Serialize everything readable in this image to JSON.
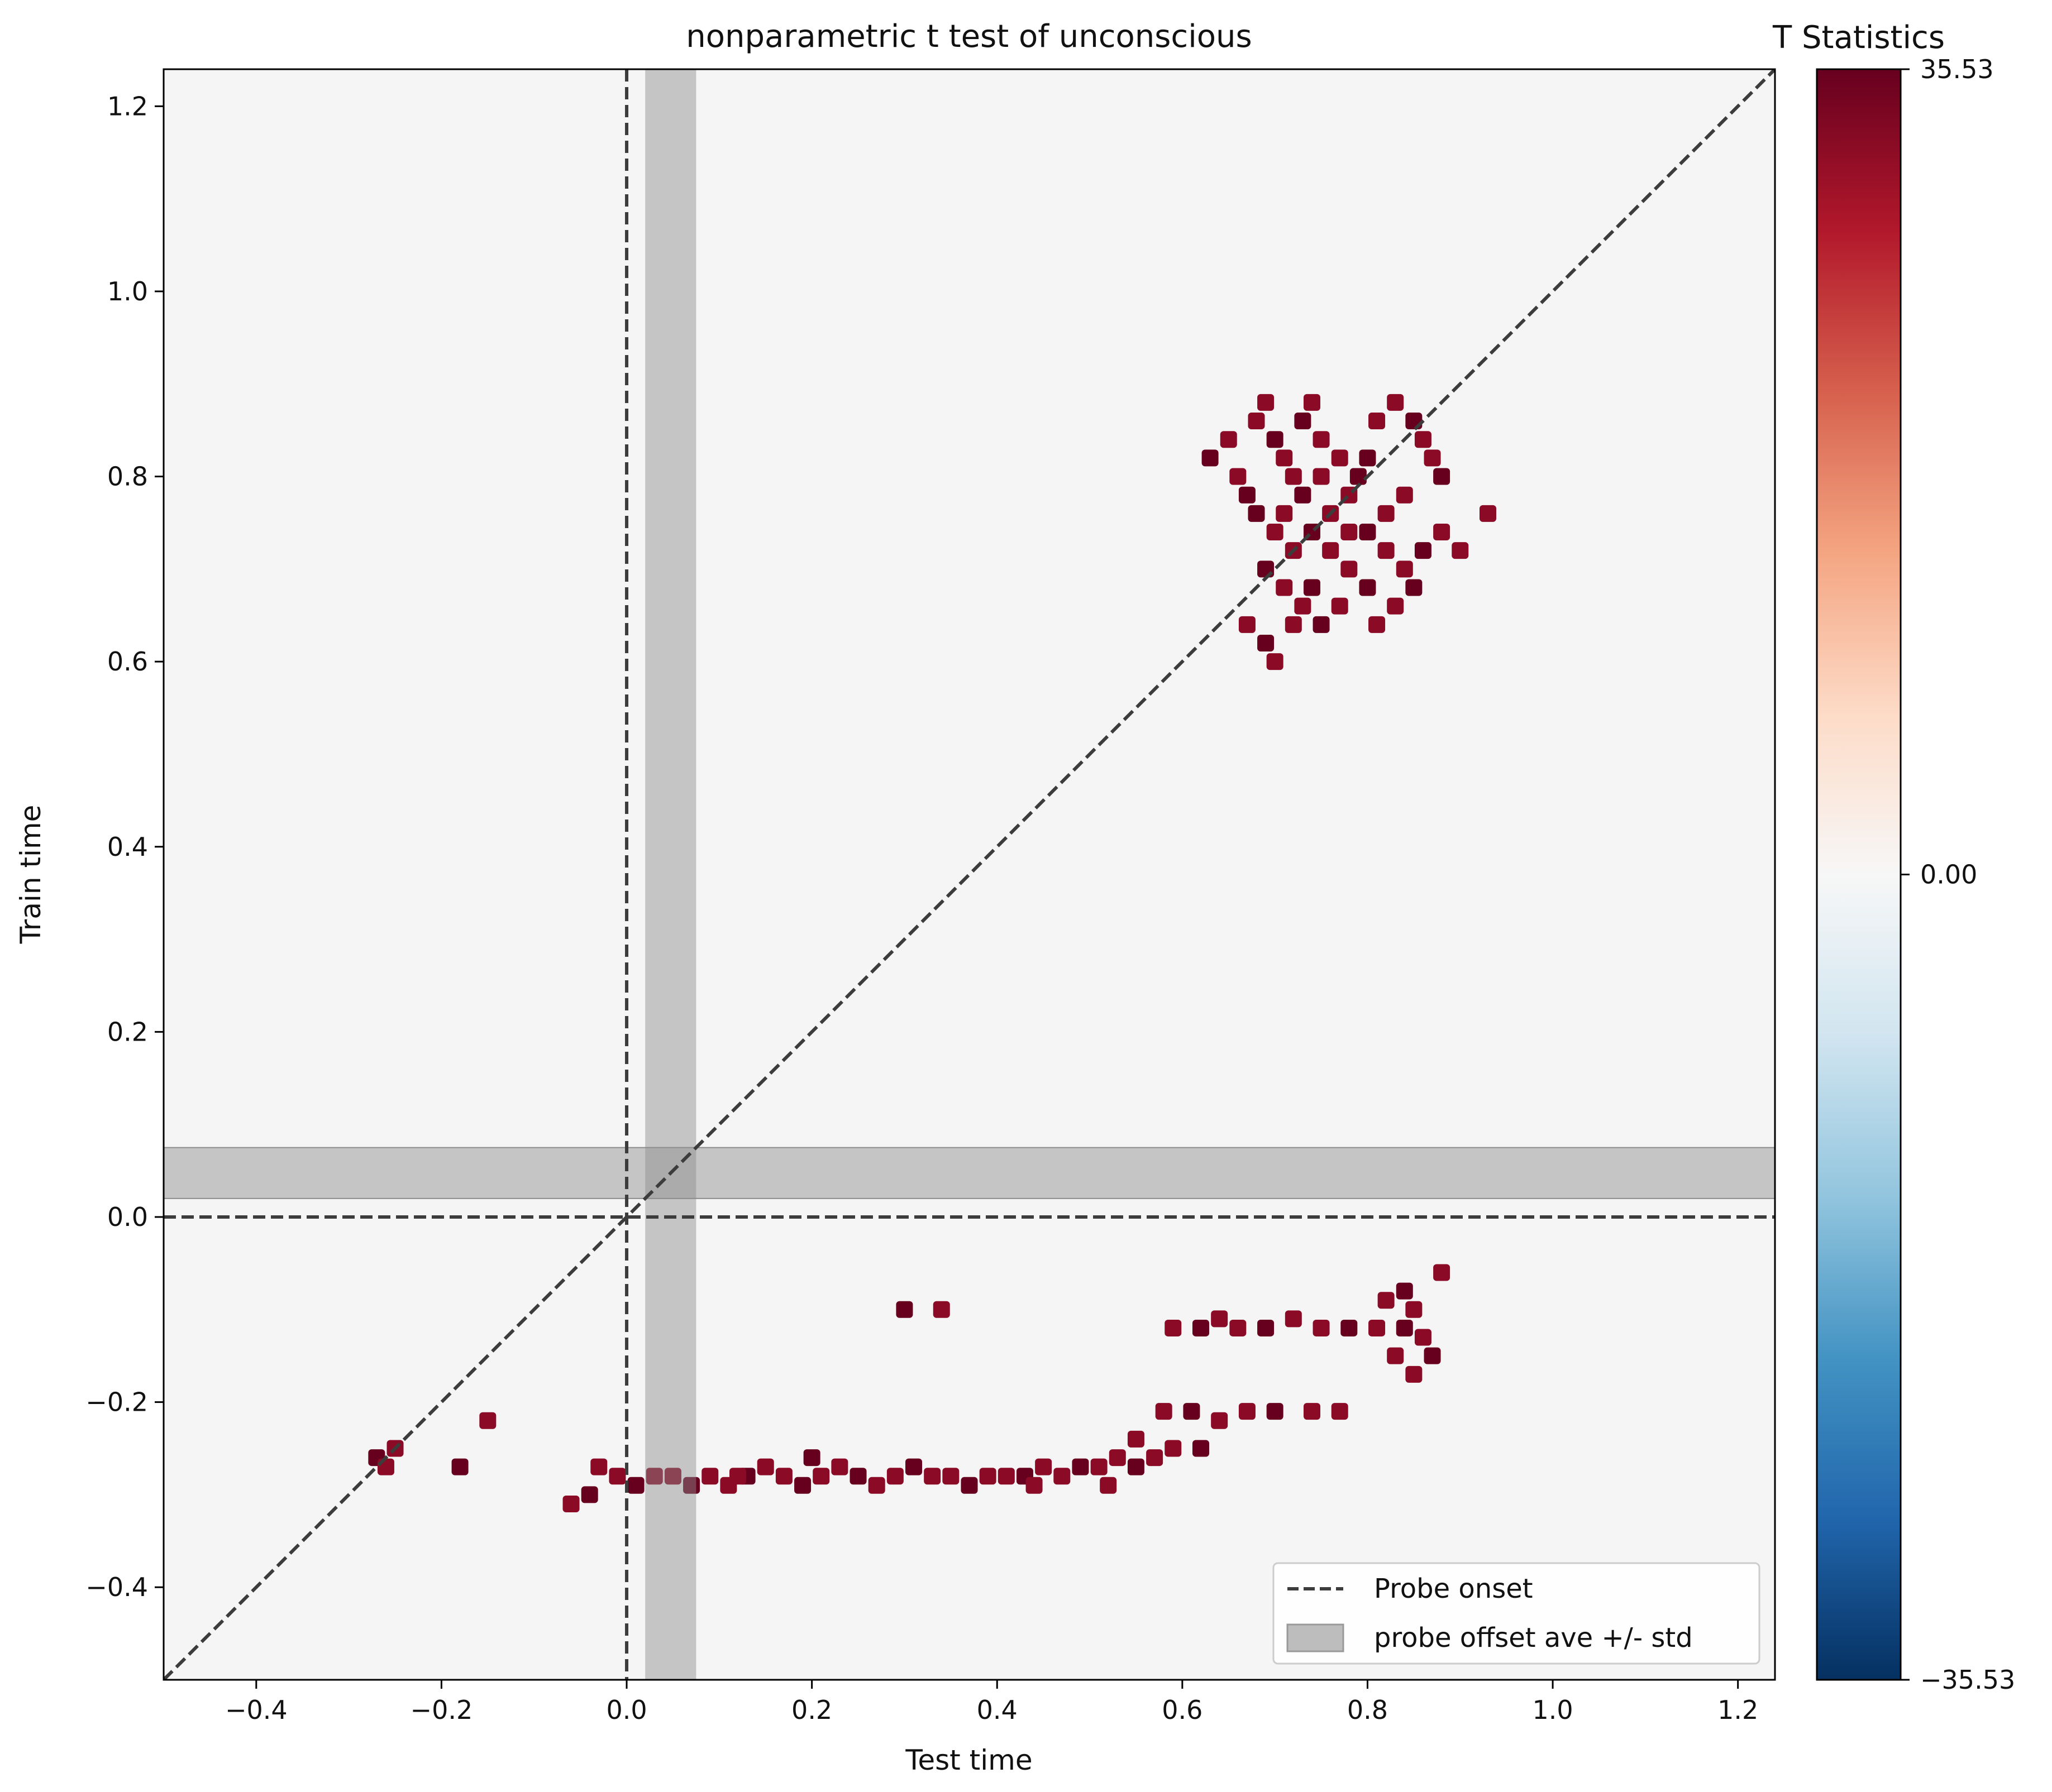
{
  "chart_data": {
    "type": "heatmap",
    "title": "nonparametric t test of unconscious",
    "xlabel": "Test time",
    "ylabel": "Train time",
    "xlim": [
      -0.5,
      1.24
    ],
    "ylim": [
      -0.5,
      1.24
    ],
    "xticks": [
      "−0.4",
      "−0.2",
      "0.0",
      "0.2",
      "0.4",
      "0.6",
      "0.8",
      "1.0",
      "1.2"
    ],
    "xtick_values": [
      -0.4,
      -0.2,
      0.0,
      0.2,
      0.4,
      0.6,
      0.8,
      1.0,
      1.2
    ],
    "yticks": [
      "−0.4",
      "−0.2",
      "0.0",
      "0.2",
      "0.4",
      "0.6",
      "0.8",
      "1.0",
      "1.2"
    ],
    "ytick_values": [
      -0.4,
      -0.2,
      0.0,
      0.2,
      0.4,
      0.6,
      0.8,
      1.0,
      1.2
    ],
    "background_value": 0.0,
    "colormap": "RdBu_r",
    "colorbar": {
      "title": "T Statistics",
      "min": -35.53,
      "max": 35.53,
      "tick_labels": [
        "35.53",
        "0.00",
        "−35.53"
      ],
      "tick_values": [
        35.53,
        0.0,
        -35.53
      ],
      "colors": [
        "#053061",
        "#2166ac",
        "#4393c3",
        "#92c5de",
        "#d1e5f0",
        "#f7f7f7",
        "#fddbc7",
        "#f4a582",
        "#d6604d",
        "#b2182b",
        "#67001f"
      ]
    },
    "reference_lines": [
      {
        "name": "Probe onset",
        "orientation": "vertical",
        "value": 0.0,
        "style": "dashed"
      },
      {
        "name": "Probe onset",
        "orientation": "horizontal",
        "value": 0.0,
        "style": "dashed"
      },
      {
        "name": "diagonal",
        "from": [
          -0.5,
          -0.5
        ],
        "to": [
          1.24,
          1.24
        ],
        "style": "dashed"
      }
    ],
    "bands": [
      {
        "name": "probe offset ave +/- std",
        "orientation": "vertical",
        "from": 0.02,
        "to": 0.075
      },
      {
        "name": "probe offset ave +/- std",
        "orientation": "horizontal",
        "from": 0.02,
        "to": 0.075
      }
    ],
    "significant_regions": [
      {
        "region": "diagonal-late",
        "points": [
          [
            0.63,
            0.82
          ],
          [
            0.65,
            0.84
          ],
          [
            0.66,
            0.8
          ],
          [
            0.67,
            0.78
          ],
          [
            0.68,
            0.86
          ],
          [
            0.69,
            0.88
          ],
          [
            0.7,
            0.84
          ],
          [
            0.71,
            0.82
          ],
          [
            0.72,
            0.8
          ],
          [
            0.73,
            0.86
          ],
          [
            0.74,
            0.88
          ],
          [
            0.75,
            0.84
          ],
          [
            0.68,
            0.76
          ],
          [
            0.7,
            0.74
          ],
          [
            0.72,
            0.72
          ],
          [
            0.74,
            0.74
          ],
          [
            0.76,
            0.72
          ],
          [
            0.78,
            0.7
          ],
          [
            0.69,
            0.7
          ],
          [
            0.71,
            0.68
          ],
          [
            0.73,
            0.66
          ],
          [
            0.75,
            0.64
          ],
          [
            0.77,
            0.66
          ],
          [
            0.67,
            0.64
          ],
          [
            0.69,
            0.62
          ],
          [
            0.7,
            0.6
          ],
          [
            0.72,
            0.64
          ],
          [
            0.74,
            0.68
          ],
          [
            0.76,
            0.76
          ],
          [
            0.78,
            0.78
          ],
          [
            0.8,
            0.82
          ],
          [
            0.81,
            0.86
          ],
          [
            0.83,
            0.88
          ],
          [
            0.85,
            0.86
          ],
          [
            0.86,
            0.84
          ],
          [
            0.87,
            0.82
          ],
          [
            0.88,
            0.8
          ],
          [
            0.84,
            0.78
          ],
          [
            0.82,
            0.76
          ],
          [
            0.8,
            0.74
          ],
          [
            0.82,
            0.72
          ],
          [
            0.84,
            0.7
          ],
          [
            0.86,
            0.72
          ],
          [
            0.88,
            0.74
          ],
          [
            0.9,
            0.72
          ],
          [
            0.85,
            0.68
          ],
          [
            0.83,
            0.66
          ],
          [
            0.81,
            0.64
          ],
          [
            0.79,
            0.8
          ],
          [
            0.77,
            0.82
          ],
          [
            0.75,
            0.8
          ],
          [
            0.73,
            0.78
          ],
          [
            0.71,
            0.76
          ],
          [
            0.93,
            0.76
          ],
          [
            0.8,
            0.68
          ],
          [
            0.78,
            0.74
          ]
        ]
      },
      {
        "region": "early-negative",
        "points": [
          [
            -0.27,
            -0.26
          ],
          [
            -0.25,
            -0.25
          ],
          [
            -0.26,
            -0.27
          ],
          [
            -0.18,
            -0.27
          ],
          [
            -0.15,
            -0.22
          ],
          [
            -0.06,
            -0.31
          ],
          [
            -0.04,
            -0.3
          ],
          [
            -0.03,
            -0.27
          ],
          [
            -0.01,
            -0.28
          ],
          [
            0.01,
            -0.29
          ],
          [
            0.03,
            -0.28
          ],
          [
            0.05,
            -0.28
          ],
          [
            0.07,
            -0.29
          ],
          [
            0.09,
            -0.28
          ],
          [
            0.11,
            -0.29
          ],
          [
            0.13,
            -0.28
          ],
          [
            0.15,
            -0.27
          ],
          [
            0.17,
            -0.28
          ],
          [
            0.19,
            -0.29
          ],
          [
            0.21,
            -0.28
          ],
          [
            0.23,
            -0.27
          ],
          [
            0.25,
            -0.28
          ],
          [
            0.27,
            -0.29
          ],
          [
            0.29,
            -0.28
          ],
          [
            0.31,
            -0.27
          ],
          [
            0.33,
            -0.28
          ],
          [
            0.35,
            -0.28
          ],
          [
            0.37,
            -0.29
          ],
          [
            0.39,
            -0.28
          ],
          [
            0.41,
            -0.28
          ],
          [
            0.43,
            -0.28
          ],
          [
            0.45,
            -0.27
          ],
          [
            0.47,
            -0.28
          ],
          [
            0.49,
            -0.27
          ],
          [
            0.51,
            -0.27
          ],
          [
            0.53,
            -0.26
          ],
          [
            0.55,
            -0.27
          ],
          [
            0.57,
            -0.26
          ],
          [
            0.59,
            -0.25
          ],
          [
            0.62,
            -0.25
          ],
          [
            0.55,
            -0.24
          ],
          [
            0.58,
            -0.21
          ],
          [
            0.61,
            -0.21
          ],
          [
            0.64,
            -0.22
          ],
          [
            0.67,
            -0.21
          ],
          [
            0.7,
            -0.21
          ],
          [
            0.74,
            -0.21
          ],
          [
            0.77,
            -0.21
          ],
          [
            0.3,
            -0.1
          ],
          [
            0.34,
            -0.1
          ],
          [
            0.59,
            -0.12
          ],
          [
            0.62,
            -0.12
          ],
          [
            0.64,
            -0.11
          ],
          [
            0.66,
            -0.12
          ],
          [
            0.69,
            -0.12
          ],
          [
            0.72,
            -0.11
          ],
          [
            0.75,
            -0.12
          ],
          [
            0.78,
            -0.12
          ],
          [
            0.81,
            -0.12
          ],
          [
            0.82,
            -0.09
          ],
          [
            0.84,
            -0.08
          ],
          [
            0.85,
            -0.1
          ],
          [
            0.86,
            -0.13
          ],
          [
            0.87,
            -0.15
          ],
          [
            0.85,
            -0.17
          ],
          [
            0.83,
            -0.15
          ],
          [
            0.84,
            -0.12
          ],
          [
            0.88,
            -0.06
          ],
          [
            0.12,
            -0.28
          ],
          [
            0.2,
            -0.26
          ],
          [
            0.44,
            -0.29
          ],
          [
            0.52,
            -0.29
          ]
        ]
      }
    ],
    "legend": {
      "placement": "lower-right",
      "entries": [
        {
          "label": "Probe onset",
          "kind": "dashed-line"
        },
        {
          "label": "probe offset ave +/- std",
          "kind": "patch"
        }
      ]
    },
    "grid": false
  }
}
